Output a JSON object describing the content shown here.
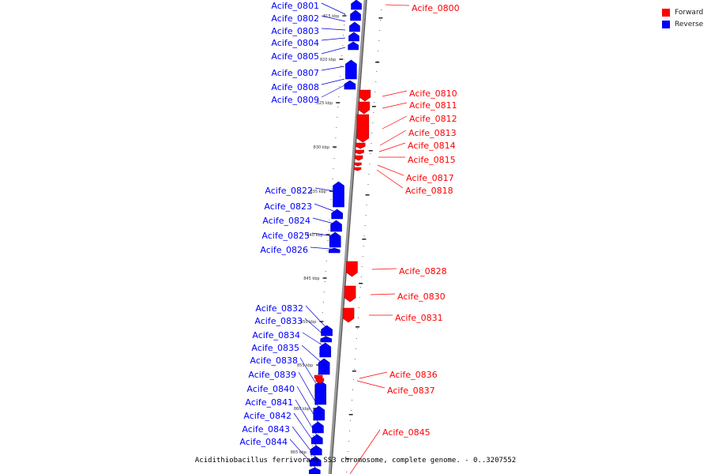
{
  "colors": {
    "forward": "#ff0000",
    "reverse": "#0000ff",
    "chromosome": "#999999",
    "label_line_forward": "#ff0000",
    "label_line_reverse": "#0000cc"
  },
  "legend": {
    "forward": "Forward",
    "reverse": "Reverse"
  },
  "caption": "Acidithiobacillus ferrivorans SS3 chromosome, complete genome. - 0..3207552",
  "ticks": [
    "815 kbp",
    "820 kbp",
    "825 kbp",
    "830 kbp",
    "835 kbp",
    "840 kbp",
    "845 kbp",
    "850 kbp",
    "855 kbp",
    "860 kbp",
    "865 kbp"
  ],
  "genes": [
    {
      "id": "Acife_0800",
      "strand": "forward",
      "drawn": false
    },
    {
      "id": "Acife_0801",
      "strand": "reverse",
      "drawn": true
    },
    {
      "id": "Acife_0802",
      "strand": "reverse",
      "drawn": true
    },
    {
      "id": "Acife_0803",
      "strand": "reverse",
      "drawn": true
    },
    {
      "id": "Acife_0804",
      "strand": "reverse",
      "drawn": true
    },
    {
      "id": "Acife_0805",
      "strand": "reverse",
      "drawn": true
    },
    {
      "id": "Acife_0807",
      "strand": "reverse",
      "drawn": true
    },
    {
      "id": "Acife_0808",
      "strand": "reverse",
      "drawn": true
    },
    {
      "id": "Acife_0809",
      "strand": "reverse",
      "drawn": true
    },
    {
      "id": "Acife_0810",
      "strand": "forward",
      "drawn": true
    },
    {
      "id": "Acife_0811",
      "strand": "forward",
      "drawn": true
    },
    {
      "id": "Acife_0812",
      "strand": "forward",
      "drawn": true
    },
    {
      "id": "Acife_0813",
      "strand": "forward",
      "drawn": true
    },
    {
      "id": "Acife_0814",
      "strand": "forward",
      "drawn": true
    },
    {
      "id": "Acife_0815",
      "strand": "forward",
      "drawn": true
    },
    {
      "id": "Acife_0817",
      "strand": "forward",
      "drawn": true
    },
    {
      "id": "Acife_0818",
      "strand": "forward",
      "drawn": true
    },
    {
      "id": "Acife_0822",
      "strand": "reverse",
      "drawn": true
    },
    {
      "id": "Acife_0823",
      "strand": "reverse",
      "drawn": true
    },
    {
      "id": "Acife_0824",
      "strand": "reverse",
      "drawn": true
    },
    {
      "id": "Acife_0825",
      "strand": "reverse",
      "drawn": true
    },
    {
      "id": "Acife_0826",
      "strand": "reverse",
      "drawn": true
    },
    {
      "id": "Acife_0828",
      "strand": "forward",
      "drawn": true
    },
    {
      "id": "Acife_0830",
      "strand": "forward",
      "drawn": true
    },
    {
      "id": "Acife_0831",
      "strand": "forward",
      "drawn": true
    },
    {
      "id": "Acife_0832",
      "strand": "reverse",
      "drawn": true
    },
    {
      "id": "Acife_0833",
      "strand": "reverse",
      "drawn": true
    },
    {
      "id": "Acife_0834",
      "strand": "reverse",
      "drawn": true
    },
    {
      "id": "Acife_0835",
      "strand": "reverse",
      "drawn": true
    },
    {
      "id": "Acife_0838",
      "strand": "reverse",
      "drawn": true
    },
    {
      "id": "Acife_0839",
      "strand": "reverse",
      "drawn": true
    },
    {
      "id": "Acife_0840",
      "strand": "reverse",
      "drawn": true
    },
    {
      "id": "Acife_0841",
      "strand": "reverse",
      "drawn": true
    },
    {
      "id": "Acife_0842",
      "strand": "reverse",
      "drawn": true
    },
    {
      "id": "Acife_0843",
      "strand": "reverse",
      "drawn": true
    },
    {
      "id": "Acife_0844",
      "strand": "reverse",
      "drawn": true
    },
    {
      "id": "Acife_0836",
      "strand": "forward",
      "drawn": true
    },
    {
      "id": "Acife_0837",
      "strand": "forward",
      "drawn": true
    },
    {
      "id": "Acife_0845",
      "strand": "forward",
      "drawn": false
    }
  ]
}
